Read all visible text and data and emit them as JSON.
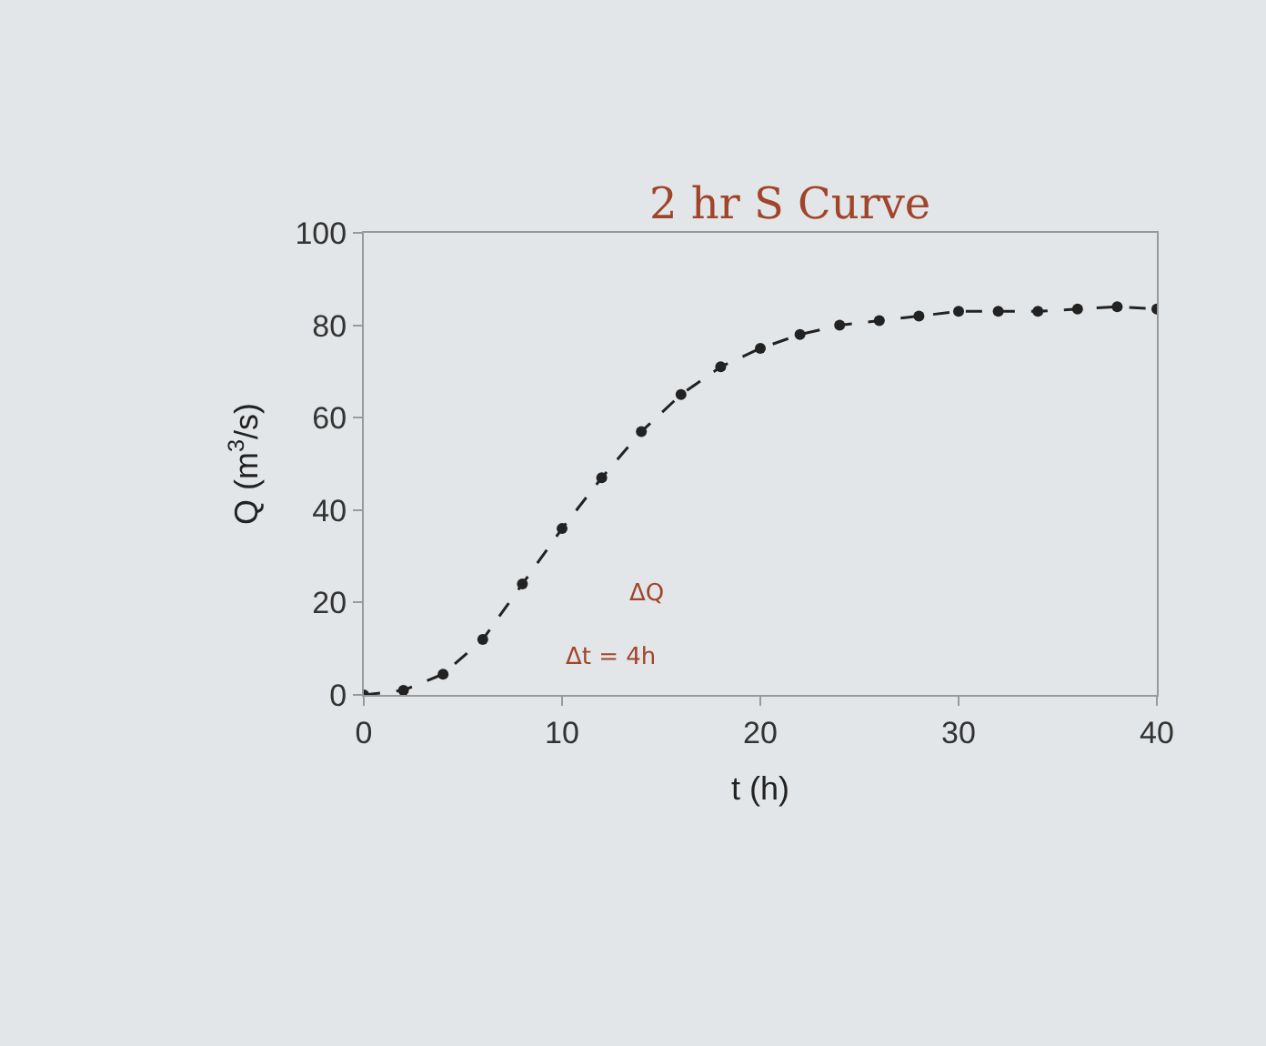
{
  "chart_data": {
    "type": "line",
    "xlabel": "t (h)",
    "ylabel": "Q (m$^{3}$/s)",
    "x": [
      0,
      2,
      4,
      6,
      8,
      10,
      12,
      14,
      16,
      18,
      20,
      22,
      24,
      26,
      28,
      30,
      32,
      34,
      36,
      38,
      40
    ],
    "series": [
      {
        "color": "#222222",
        "values": [
          0,
          1,
          4.5,
          12,
          24,
          36,
          47,
          57,
          65,
          71,
          75,
          78,
          80,
          81,
          82,
          83,
          83,
          83,
          83.5,
          84,
          83.5
        ]
      }
    ],
    "xlim": [
      0,
      40
    ],
    "xticks": [
      0,
      10,
      20,
      30,
      40
    ],
    "ylim": [
      0,
      100
    ],
    "yticks": [
      0,
      20,
      40,
      60,
      80,
      100
    ],
    "grid": false,
    "marker": "circle",
    "line_style": "dashed",
    "annotations": [
      "2 hr S Curve",
      "ΔQ",
      "Δt = 4h"
    ]
  }
}
